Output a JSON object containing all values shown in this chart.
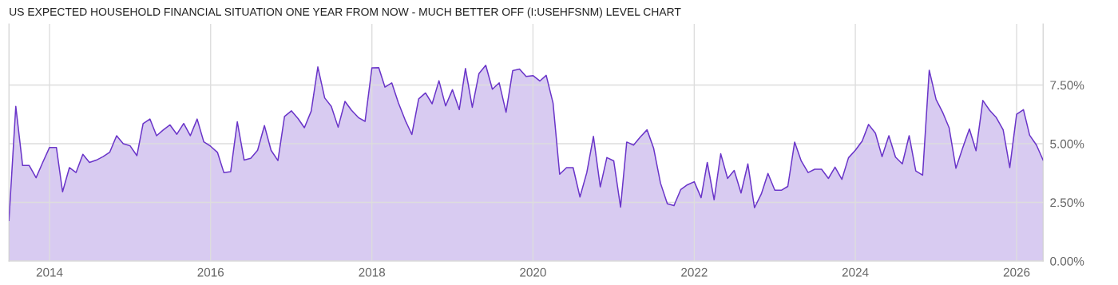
{
  "chart_data": {
    "type": "area",
    "title": "US EXPECTED HOUSEHOLD FINANCIAL SITUATION ONE YEAR FROM NOW - MUCH BETTER OFF (I:USEHFSNM) LEVEL CHART",
    "x": [
      "2013-07",
      "2013-08",
      "2013-09",
      "2013-10",
      "2013-11",
      "2013-12",
      "2014-01",
      "2014-02",
      "2014-03",
      "2014-04",
      "2014-05",
      "2014-06",
      "2014-07",
      "2014-08",
      "2014-09",
      "2014-10",
      "2014-11",
      "2014-12",
      "2015-01",
      "2015-02",
      "2015-03",
      "2015-04",
      "2015-05",
      "2015-06",
      "2015-07",
      "2015-08",
      "2015-09",
      "2015-10",
      "2015-11",
      "2015-12",
      "2016-01",
      "2016-02",
      "2016-03",
      "2016-04",
      "2016-05",
      "2016-06",
      "2016-07",
      "2016-08",
      "2016-09",
      "2016-10",
      "2016-11",
      "2016-12",
      "2017-01",
      "2017-02",
      "2017-03",
      "2017-04",
      "2017-05",
      "2017-06",
      "2017-07",
      "2017-08",
      "2017-09",
      "2017-10",
      "2017-11",
      "2017-12",
      "2018-01",
      "2018-02",
      "2018-03",
      "2018-04",
      "2018-05",
      "2018-06",
      "2018-07",
      "2018-08",
      "2018-09",
      "2018-10",
      "2018-11",
      "2018-12",
      "2019-01",
      "2019-02",
      "2019-03",
      "2019-04",
      "2019-05",
      "2019-06",
      "2019-07",
      "2019-08",
      "2019-09",
      "2019-10",
      "2019-11",
      "2019-12",
      "2020-01",
      "2020-02",
      "2020-03",
      "2020-04",
      "2020-05",
      "2020-06",
      "2020-07",
      "2020-08",
      "2020-09",
      "2020-10",
      "2020-11",
      "2020-12",
      "2021-01",
      "2021-02",
      "2021-03",
      "2021-04",
      "2021-05",
      "2021-06",
      "2021-07",
      "2021-08",
      "2021-09",
      "2021-10",
      "2021-11",
      "2021-12",
      "2022-01",
      "2022-02",
      "2022-03",
      "2022-04",
      "2022-05",
      "2022-06",
      "2022-07",
      "2022-08",
      "2022-09",
      "2022-10",
      "2022-11",
      "2022-12",
      "2023-01",
      "2023-02",
      "2023-03",
      "2023-04",
      "2023-05",
      "2023-06",
      "2023-07",
      "2023-08",
      "2023-09",
      "2023-10",
      "2023-11",
      "2023-12",
      "2024-01",
      "2024-02",
      "2024-03",
      "2024-04",
      "2024-05",
      "2024-06",
      "2024-07",
      "2024-08",
      "2024-09",
      "2024-10",
      "2024-11",
      "2024-12",
      "2025-01",
      "2025-02",
      "2025-03",
      "2025-04",
      "2025-05",
      "2025-06",
      "2025-07",
      "2025-08",
      "2025-09",
      "2025-10",
      "2025-11",
      "2025-12",
      "2026-01",
      "2026-02",
      "2026-03",
      "2026-04",
      "2026-05"
    ],
    "series": [
      {
        "color": "#6a35c9",
        "values": [
          1.73,
          6.59,
          4.07,
          4.07,
          3.55,
          4.2,
          4.84,
          4.84,
          2.95,
          3.98,
          3.77,
          4.55,
          4.2,
          4.3,
          4.45,
          4.64,
          5.34,
          5.0,
          4.91,
          4.49,
          5.85,
          6.05,
          5.34,
          5.59,
          5.8,
          5.4,
          5.86,
          5.34,
          6.05,
          5.08,
          4.89,
          4.63,
          3.77,
          3.81,
          5.93,
          4.3,
          4.38,
          4.72,
          5.77,
          4.72,
          4.28,
          6.16,
          6.4,
          6.06,
          5.68,
          6.39,
          8.27,
          6.95,
          6.59,
          5.7,
          6.8,
          6.42,
          6.11,
          5.95,
          8.23,
          8.24,
          7.41,
          7.59,
          6.74,
          6.0,
          5.39,
          6.91,
          7.16,
          6.7,
          7.68,
          6.61,
          7.3,
          6.45,
          8.2,
          6.55,
          7.98,
          8.34,
          7.32,
          7.59,
          6.34,
          8.11,
          8.18,
          7.86,
          7.9,
          7.67,
          7.91,
          6.73,
          3.7,
          3.98,
          3.98,
          2.73,
          3.77,
          5.31,
          3.16,
          4.41,
          4.27,
          2.3,
          5.07,
          4.94,
          5.28,
          5.59,
          4.8,
          3.32,
          2.44,
          2.36,
          3.05,
          3.25,
          3.38,
          2.7,
          4.2,
          2.61,
          4.57,
          3.52,
          3.86,
          2.9,
          4.14,
          2.27,
          2.86,
          3.73,
          3.02,
          3.02,
          3.18,
          5.07,
          4.26,
          3.77,
          3.91,
          3.91,
          3.52,
          4.0,
          3.48,
          4.4,
          4.72,
          5.11,
          5.82,
          5.45,
          4.45,
          5.34,
          4.43,
          4.14,
          5.34,
          3.84,
          3.66,
          8.13,
          6.88,
          6.31,
          5.68,
          3.95,
          4.8,
          5.63,
          4.7,
          6.84,
          6.42,
          6.11,
          5.59,
          3.98,
          6.25,
          6.45,
          5.36,
          4.94,
          4.3
        ]
      }
    ],
    "xlim": [
      "2013-07",
      "2026-05"
    ],
    "xticks": [
      {
        "value": "2014-01",
        "label": "2014"
      },
      {
        "value": "2016-01",
        "label": "2016"
      },
      {
        "value": "2018-01",
        "label": "2018"
      },
      {
        "value": "2020-01",
        "label": "2020"
      },
      {
        "value": "2022-01",
        "label": "2022"
      },
      {
        "value": "2024-01",
        "label": "2024"
      },
      {
        "value": "2026-01",
        "label": "2026"
      }
    ],
    "ylim": [
      0,
      10.1
    ],
    "yticks": [
      {
        "value": 0,
        "label": "0.00%"
      },
      {
        "value": 2.5,
        "label": "2.50%"
      },
      {
        "value": 5,
        "label": "5.00%"
      },
      {
        "value": 7.5,
        "label": "7.50%"
      }
    ],
    "grid": true,
    "legend": false
  }
}
